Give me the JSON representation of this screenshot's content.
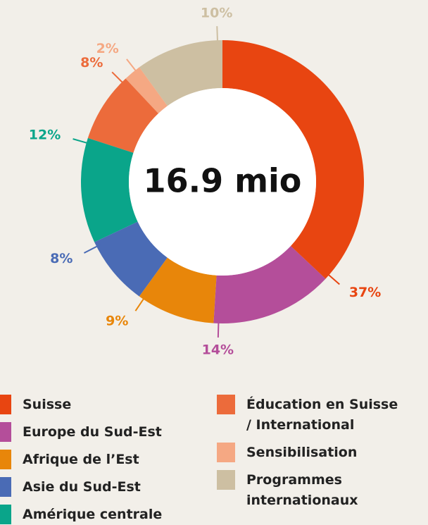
{
  "chart_data": {
    "type": "donut",
    "center_label": "16.9 mio",
    "categories": [
      "Suisse",
      "Europe du Sud-Est",
      "Afrique de l’Est",
      "Asie du Sud-Est",
      "Amérique centrale",
      "Éducation en Suisse / International",
      "Sensibilisation",
      "Programmes internationaux"
    ],
    "values": [
      37,
      14,
      9,
      8,
      12,
      8,
      2,
      10
    ],
    "value_labels": [
      "37%",
      "14%",
      "9%",
      "8%",
      "12%",
      "8%",
      "2%",
      "10%"
    ],
    "colors": [
      "#e84511",
      "#b44e9a",
      "#e8860a",
      "#4a6bb5",
      "#0aa58a",
      "#ec6b3b",
      "#f5a883",
      "#cdbfa2"
    ]
  }
}
